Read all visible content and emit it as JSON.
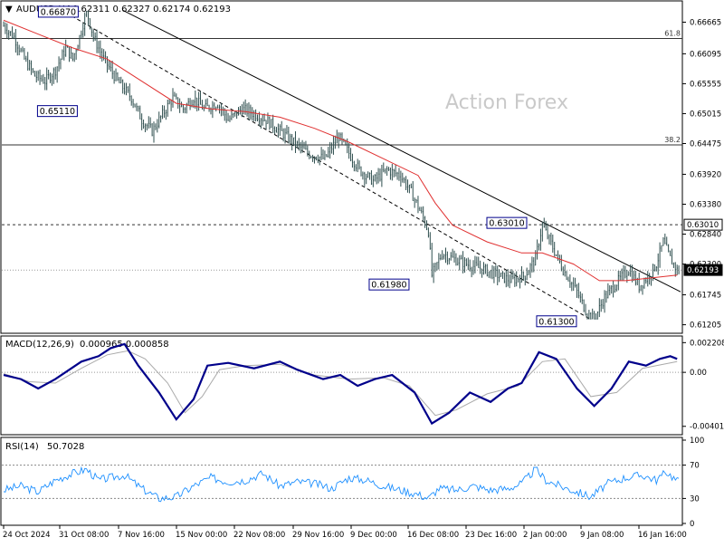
{
  "header": {
    "symbol_tf": "AUDUSD,H4",
    "ohlc": "0.62311 0.62327 0.62174 0.62193",
    "macd_label": "MACD(12,26,9)",
    "macd_values": "0.000965 0.000858",
    "rsi_label": "RSI(14)",
    "rsi_value": "50.7028"
  },
  "watermark": "Action Forex",
  "colors": {
    "candle": "#2f4f4f",
    "ma": "#e03030",
    "macd_line": "#00008b",
    "macd_signal": "#aaaaaa",
    "rsi": "#1e90ff",
    "label_border": "#00008b",
    "price_box": "#000000"
  },
  "chart_data": [
    {
      "type": "candlestick",
      "title": "AUDUSD,H4",
      "price_axis_ticks": [
        "0.66665",
        "0.66095",
        "0.65555",
        "0.65015",
        "0.64475",
        "0.63920",
        "0.63380",
        "0.62840",
        "0.62300",
        "0.61745",
        "0.61205"
      ],
      "price_axis_boxes": [
        {
          "value": "0.63010",
          "style": "outline"
        },
        {
          "value": "0.62193",
          "style": "filled"
        }
      ],
      "ylim": [
        0.611,
        0.67
      ],
      "time_axis_ticks": [
        "24 Oct 2024",
        "31 Oct 08:00",
        "7 Nov 16:00",
        "15 Nov 00:00",
        "22 Nov 08:00",
        "29 Nov 16:00",
        "9 Dec 00:00",
        "16 Dec 08:00",
        "23 Dec 16:00",
        "2 Jan 00:00",
        "9 Jan 08:00",
        "16 Jan 16:00"
      ],
      "horizontal_levels": [
        {
          "label": "61.8",
          "value": 0.6637
        },
        {
          "label": "38.2",
          "value": 0.6445
        },
        {
          "label": "",
          "value": 0.6301,
          "style": "dashed"
        },
        {
          "label": "",
          "value": 0.6219,
          "style": "dotted"
        }
      ],
      "price_labels": [
        {
          "text": "0.66870",
          "value": 0.6687
        },
        {
          "text": "0.65110",
          "value": 0.6511
        },
        {
          "text": "0.61980",
          "value": 0.6198
        },
        {
          "text": "0.63010",
          "value": 0.6301
        },
        {
          "text": "0.61300",
          "value": 0.613
        }
      ],
      "path_points": [
        [
          0,
          0.666
        ],
        [
          6,
          0.664
        ],
        [
          12,
          0.66
        ],
        [
          18,
          0.657
        ],
        [
          24,
          0.656
        ],
        [
          30,
          0.658
        ],
        [
          36,
          0.662
        ],
        [
          40,
          0.66
        ],
        [
          44,
          0.664
        ],
        [
          48,
          0.6687
        ],
        [
          52,
          0.664
        ],
        [
          58,
          0.66
        ],
        [
          66,
          0.656
        ],
        [
          74,
          0.653
        ],
        [
          80,
          0.649
        ],
        [
          86,
          0.647
        ],
        [
          92,
          0.65
        ],
        [
          98,
          0.653
        ],
        [
          104,
          0.651
        ],
        [
          110,
          0.653
        ],
        [
          116,
          0.651
        ],
        [
          124,
          0.652
        ],
        [
          130,
          0.649
        ],
        [
          138,
          0.651
        ],
        [
          146,
          0.65
        ],
        [
          152,
          0.649
        ],
        [
          160,
          0.647
        ],
        [
          168,
          0.645
        ],
        [
          176,
          0.643
        ],
        [
          186,
          0.642
        ],
        [
          194,
          0.646
        ],
        [
          200,
          0.643
        ],
        [
          206,
          0.64
        ],
        [
          214,
          0.638
        ],
        [
          222,
          0.64
        ],
        [
          230,
          0.639
        ],
        [
          236,
          0.636
        ],
        [
          242,
          0.632
        ],
        [
          246,
          0.629
        ],
        [
          248,
          0.621
        ],
        [
          254,
          0.625
        ],
        [
          260,
          0.624
        ],
        [
          268,
          0.623
        ],
        [
          278,
          0.622
        ],
        [
          286,
          0.621
        ],
        [
          294,
          0.62
        ],
        [
          302,
          0.621
        ],
        [
          308,
          0.624
        ],
        [
          312,
          0.6301
        ],
        [
          318,
          0.626
        ],
        [
          324,
          0.622
        ],
        [
          332,
          0.618
        ],
        [
          338,
          0.614
        ],
        [
          342,
          0.613
        ],
        [
          348,
          0.617
        ],
        [
          356,
          0.62
        ],
        [
          362,
          0.622
        ],
        [
          368,
          0.619
        ],
        [
          374,
          0.621
        ],
        [
          378,
          0.623
        ],
        [
          382,
          0.627
        ],
        [
          386,
          0.624
        ],
        [
          390,
          0.6219
        ]
      ],
      "ma_points": [
        [
          0,
          0.667
        ],
        [
          20,
          0.6645
        ],
        [
          40,
          0.662
        ],
        [
          60,
          0.66
        ],
        [
          80,
          0.656
        ],
        [
          100,
          0.652
        ],
        [
          120,
          0.651
        ],
        [
          140,
          0.6505
        ],
        [
          160,
          0.6495
        ],
        [
          180,
          0.6475
        ],
        [
          200,
          0.645
        ],
        [
          220,
          0.642
        ],
        [
          240,
          0.639
        ],
        [
          250,
          0.634
        ],
        [
          260,
          0.63
        ],
        [
          280,
          0.627
        ],
        [
          300,
          0.625
        ],
        [
          312,
          0.625
        ],
        [
          330,
          0.623
        ],
        [
          345,
          0.62
        ],
        [
          360,
          0.62
        ],
        [
          375,
          0.6205
        ],
        [
          390,
          0.621
        ]
      ],
      "trendlines": [
        {
          "style": "solid",
          "from": [
            69,
            0.6688
          ],
          "to": [
            392,
            0.618
          ]
        },
        {
          "style": "dashed",
          "from": [
            30,
            0.6695
          ],
          "to": [
            340,
            0.613
          ]
        }
      ]
    },
    {
      "type": "line",
      "title": "MACD(12,26,9)",
      "axis_ticks": [
        "0.002208",
        "0.00",
        "-0.004012"
      ],
      "ylim": [
        -0.0045,
        0.0025
      ],
      "series": [
        {
          "name": "MACD",
          "points": [
            [
              0,
              -0.0002
            ],
            [
              10,
              -0.0005
            ],
            [
              20,
              -0.0012
            ],
            [
              30,
              -0.0005
            ],
            [
              45,
              0.0008
            ],
            [
              55,
              0.0012
            ],
            [
              62,
              0.0018
            ],
            [
              70,
              0.0021
            ],
            [
              78,
              0.0005
            ],
            [
              90,
              -0.0015
            ],
            [
              100,
              -0.0035
            ],
            [
              110,
              -0.002
            ],
            [
              118,
              0.0005
            ],
            [
              130,
              0.0007
            ],
            [
              145,
              0.0003
            ],
            [
              160,
              0.0008
            ],
            [
              170,
              0.0002
            ],
            [
              185,
              -0.0005
            ],
            [
              195,
              -0.0002
            ],
            [
              205,
              -0.001
            ],
            [
              215,
              -0.0005
            ],
            [
              225,
              -0.0002
            ],
            [
              238,
              -0.0015
            ],
            [
              248,
              -0.0038
            ],
            [
              258,
              -0.003
            ],
            [
              270,
              -0.0015
            ],
            [
              282,
              -0.0022
            ],
            [
              292,
              -0.0012
            ],
            [
              300,
              -0.0008
            ],
            [
              310,
              0.0015
            ],
            [
              320,
              0.001
            ],
            [
              332,
              -0.0012
            ],
            [
              342,
              -0.0025
            ],
            [
              352,
              -0.0012
            ],
            [
              362,
              0.0008
            ],
            [
              372,
              0.0005
            ],
            [
              380,
              0.001
            ],
            [
              386,
              0.0012
            ],
            [
              390,
              0.001
            ]
          ]
        },
        {
          "name": "Signal",
          "points": [
            [
              0,
              -0.0001
            ],
            [
              15,
              -0.0007
            ],
            [
              30,
              -0.0008
            ],
            [
              45,
              0.0003
            ],
            [
              60,
              0.0013
            ],
            [
              72,
              0.0016
            ],
            [
              82,
              0.001
            ],
            [
              95,
              -0.0008
            ],
            [
              105,
              -0.003
            ],
            [
              115,
              -0.0018
            ],
            [
              125,
              0.0002
            ],
            [
              140,
              0.0005
            ],
            [
              160,
              0.0006
            ],
            [
              180,
              -0.0002
            ],
            [
              200,
              -0.0005
            ],
            [
              220,
              -0.0004
            ],
            [
              235,
              -0.001
            ],
            [
              250,
              -0.0032
            ],
            [
              262,
              -0.0028
            ],
            [
              280,
              -0.0016
            ],
            [
              298,
              -0.001
            ],
            [
              312,
              0.0008
            ],
            [
              325,
              0.001
            ],
            [
              340,
              -0.0018
            ],
            [
              355,
              -0.0015
            ],
            [
              370,
              0.0003
            ],
            [
              390,
              0.0008
            ]
          ]
        }
      ]
    },
    {
      "type": "line",
      "title": "RSI(14)",
      "axis_ticks": [
        "100",
        "70",
        "30",
        "0"
      ],
      "ylim": [
        0,
        100
      ],
      "series": [
        {
          "name": "RSI",
          "points": [
            [
              0,
              40
            ],
            [
              10,
              45
            ],
            [
              20,
              38
            ],
            [
              30,
              52
            ],
            [
              40,
              60
            ],
            [
              48,
              65
            ],
            [
              55,
              52
            ],
            [
              62,
              55
            ],
            [
              70,
              58
            ],
            [
              80,
              42
            ],
            [
              90,
              30
            ],
            [
              100,
              32
            ],
            [
              110,
              45
            ],
            [
              120,
              55
            ],
            [
              130,
              50
            ],
            [
              140,
              52
            ],
            [
              150,
              60
            ],
            [
              160,
              45
            ],
            [
              170,
              50
            ],
            [
              180,
              48
            ],
            [
              190,
              42
            ],
            [
              200,
              55
            ],
            [
              210,
              52
            ],
            [
              220,
              45
            ],
            [
              230,
              40
            ],
            [
              240,
              35
            ],
            [
              246,
              30
            ],
            [
              252,
              42
            ],
            [
              262,
              40
            ],
            [
              272,
              45
            ],
            [
              282,
              40
            ],
            [
              292,
              42
            ],
            [
              300,
              48
            ],
            [
              308,
              65
            ],
            [
              314,
              52
            ],
            [
              322,
              45
            ],
            [
              332,
              38
            ],
            [
              340,
              32
            ],
            [
              350,
              48
            ],
            [
              360,
              55
            ],
            [
              370,
              58
            ],
            [
              378,
              52
            ],
            [
              384,
              62
            ],
            [
              390,
              51
            ]
          ]
        }
      ]
    }
  ]
}
